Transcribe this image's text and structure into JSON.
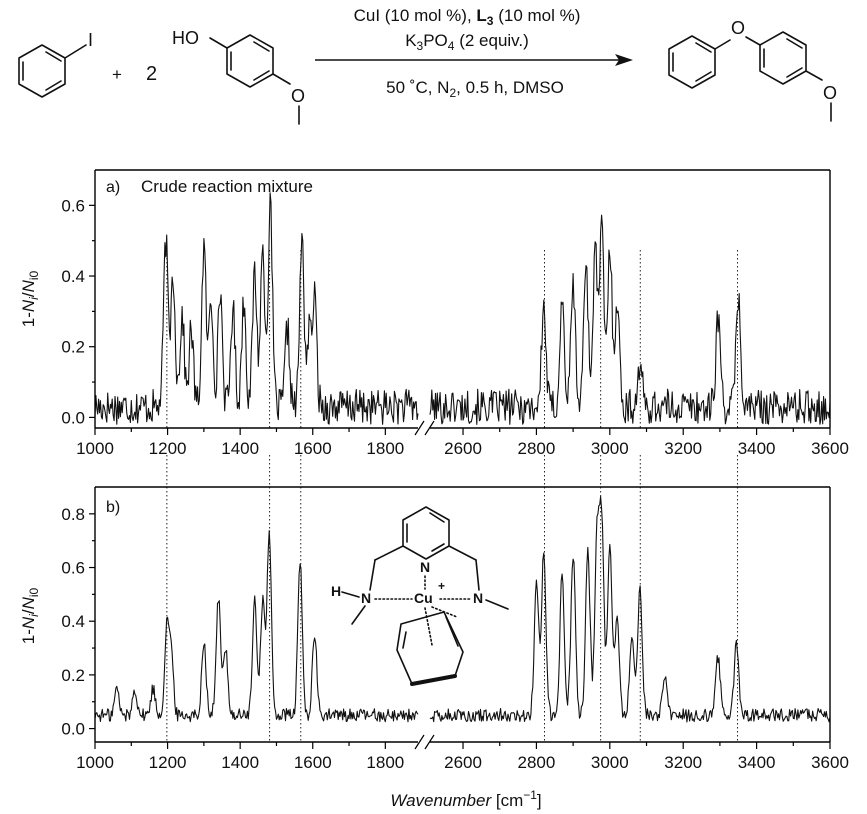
{
  "reaction": {
    "plus": "+",
    "coefficient": "2",
    "conditions_line1_a": "CuI (10 mol %), ",
    "conditions_line1_b": "L",
    "conditions_line1_sub": "3",
    "conditions_line1_c": " (10 mol %)",
    "conditions_line2_a": "K",
    "conditions_line2_sub1": "3",
    "conditions_line2_b": "PO",
    "conditions_line2_sub2": "4",
    "conditions_line2_c": " (2 equiv.)",
    "conditions_line3_a": "50 ˚C, N",
    "conditions_line3_sub": "2",
    "conditions_line3_b": ", 0.5 h, DMSO",
    "atom_I": "I",
    "atom_HO": "HO",
    "atom_O": "O"
  },
  "complex": {
    "atom_N": "N",
    "atom_H": "H",
    "atom_Cu": "Cu",
    "charge": "+"
  },
  "chart_data": [
    {
      "type": "line",
      "panel_label": "a)",
      "title": "Crude reaction mixture",
      "ylabel_prefix": "1-",
      "ylabel_N1": "N",
      "ylabel_sub1": "i",
      "ylabel_slash": "/",
      "ylabel_N2": "N",
      "ylabel_sub2": "i0",
      "xlabel": "",
      "ylim": [
        -0.03,
        0.7
      ],
      "yticks": [
        "0.0",
        "0.2",
        "0.4",
        "0.6"
      ],
      "xticks": [
        "1000",
        "1200",
        "1400",
        "1600",
        "1800",
        "2600",
        "2800",
        "3000",
        "3200",
        "3400",
        "3600"
      ],
      "axis_break": true,
      "x_segments": [
        [
          1000,
          1890
        ],
        [
          2510,
          3600
        ]
      ],
      "baseline": 0.03,
      "noise": 0.05,
      "peaks": [
        {
          "x": 1195,
          "y": 0.47
        },
        {
          "x": 1215,
          "y": 0.38
        },
        {
          "x": 1240,
          "y": 0.26
        },
        {
          "x": 1265,
          "y": 0.22
        },
        {
          "x": 1300,
          "y": 0.45
        },
        {
          "x": 1320,
          "y": 0.3
        },
        {
          "x": 1345,
          "y": 0.33
        },
        {
          "x": 1380,
          "y": 0.28
        },
        {
          "x": 1410,
          "y": 0.3
        },
        {
          "x": 1440,
          "y": 0.38
        },
        {
          "x": 1462,
          "y": 0.44
        },
        {
          "x": 1483,
          "y": 0.56
        },
        {
          "x": 1530,
          "y": 0.22
        },
        {
          "x": 1570,
          "y": 0.47
        },
        {
          "x": 1590,
          "y": 0.2
        },
        {
          "x": 1605,
          "y": 0.3
        },
        {
          "x": 2820,
          "y": 0.28
        },
        {
          "x": 2870,
          "y": 0.3
        },
        {
          "x": 2900,
          "y": 0.35
        },
        {
          "x": 2935,
          "y": 0.42
        },
        {
          "x": 2960,
          "y": 0.44
        },
        {
          "x": 2978,
          "y": 0.5
        },
        {
          "x": 3000,
          "y": 0.45
        },
        {
          "x": 3020,
          "y": 0.3
        },
        {
          "x": 3082,
          "y": 0.12
        },
        {
          "x": 3295,
          "y": 0.26
        },
        {
          "x": 3350,
          "y": 0.32
        }
      ]
    },
    {
      "type": "line",
      "panel_label": "b)",
      "title": "",
      "ylabel_prefix": "1-",
      "ylabel_N1": "N",
      "ylabel_sub1": "i",
      "ylabel_slash": "/",
      "ylabel_N2": "N",
      "ylabel_sub2": "i0",
      "xlabel": "Wavenumber",
      "xlabel_unit_a": " [cm",
      "xlabel_unit_sup": "−1",
      "xlabel_unit_b": "]",
      "ylim": [
        -0.05,
        0.9
      ],
      "yticks": [
        "0.0",
        "0.2",
        "0.4",
        "0.6",
        "0.8"
      ],
      "xticks": [
        "1000",
        "1200",
        "1400",
        "1600",
        "1800",
        "2600",
        "2800",
        "3000",
        "3200",
        "3400",
        "3600"
      ],
      "axis_break": true,
      "x_segments": [
        [
          1000,
          1890
        ],
        [
          2510,
          3600
        ]
      ],
      "baseline": 0.05,
      "noise": 0.025,
      "peaks": [
        {
          "x": 1060,
          "y": 0.1
        },
        {
          "x": 1110,
          "y": 0.1
        },
        {
          "x": 1160,
          "y": 0.1
        },
        {
          "x": 1198,
          "y": 0.33
        },
        {
          "x": 1210,
          "y": 0.22
        },
        {
          "x": 1300,
          "y": 0.28
        },
        {
          "x": 1340,
          "y": 0.44
        },
        {
          "x": 1360,
          "y": 0.25
        },
        {
          "x": 1440,
          "y": 0.42
        },
        {
          "x": 1462,
          "y": 0.42
        },
        {
          "x": 1480,
          "y": 0.67
        },
        {
          "x": 1565,
          "y": 0.57
        },
        {
          "x": 1605,
          "y": 0.3
        },
        {
          "x": 2800,
          "y": 0.48
        },
        {
          "x": 2820,
          "y": 0.6
        },
        {
          "x": 2870,
          "y": 0.52
        },
        {
          "x": 2900,
          "y": 0.6
        },
        {
          "x": 2940,
          "y": 0.62
        },
        {
          "x": 2965,
          "y": 0.66
        },
        {
          "x": 2978,
          "y": 0.71
        },
        {
          "x": 3000,
          "y": 0.62
        },
        {
          "x": 3020,
          "y": 0.35
        },
        {
          "x": 3060,
          "y": 0.28
        },
        {
          "x": 3082,
          "y": 0.46
        },
        {
          "x": 3150,
          "y": 0.14
        },
        {
          "x": 3295,
          "y": 0.22
        },
        {
          "x": 3345,
          "y": 0.28
        }
      ]
    }
  ],
  "guide_lines": [
    1198,
    1481,
    1567,
    2822,
    2975,
    3083,
    3348
  ]
}
